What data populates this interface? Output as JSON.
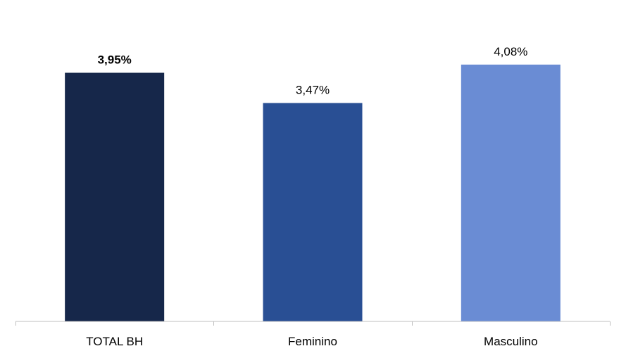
{
  "chart_data": {
    "type": "bar",
    "categories": [
      "TOTAL BH",
      "Feminino",
      "Masculino"
    ],
    "values": [
      3.95,
      3.47,
      4.08
    ],
    "value_labels": [
      "3,95%",
      "3,47%",
      "4,08%"
    ],
    "bold_labels": [
      true,
      false,
      false
    ],
    "colors": [
      "#16274a",
      "#294f94",
      "#6a8cd4"
    ],
    "title": "",
    "xlabel": "",
    "ylabel": "",
    "ylim": [
      0,
      4.3
    ],
    "grid": false,
    "legend": "none"
  }
}
